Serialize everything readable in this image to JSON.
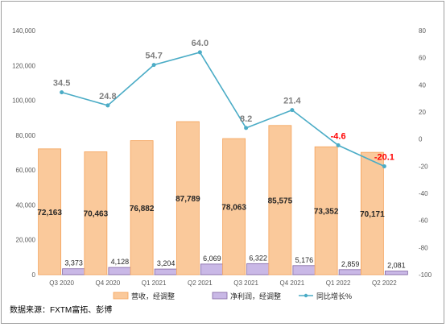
{
  "chart_data": {
    "type": "bar",
    "title": "",
    "categories": [
      "Q3 2020",
      "Q4 2020",
      "Q1 2021",
      "Q2 2021",
      "Q3 2021",
      "Q4 2021",
      "Q1 2022",
      "Q2 2022"
    ],
    "series": [
      {
        "name": "营收，经调整",
        "kind": "bar",
        "axis": "left",
        "color": "#fac99b",
        "values": [
          72163,
          70463,
          76882,
          87789,
          78063,
          85575,
          73352,
          70171
        ],
        "labels": [
          "72,163",
          "70,463",
          "76,882",
          "87,789",
          "78,063",
          "85,575",
          "73,352",
          "70,171"
        ]
      },
      {
        "name": "净利润，经调整",
        "kind": "bar",
        "axis": "left",
        "color": "#c9b8e6",
        "values": [
          3373,
          4128,
          3204,
          6069,
          6322,
          5176,
          2859,
          2081
        ],
        "labels": [
          "3,373",
          "4,128",
          "3,204",
          "6,069",
          "6,322",
          "5,176",
          "2,859",
          "2,081"
        ]
      },
      {
        "name": "同比增长%",
        "kind": "line",
        "axis": "right",
        "color": "#4bacc6",
        "values": [
          34.5,
          24.8,
          54.7,
          64.0,
          8.2,
          21.4,
          -4.6,
          -20.1
        ],
        "labels": [
          "34.5",
          "24.8",
          "54.7",
          "64.0",
          "8.2",
          "21.4",
          "-4.6",
          "-20.1"
        ]
      }
    ],
    "left_axis": {
      "ylim": [
        0,
        140000
      ],
      "ticks": [
        "0",
        "20,000",
        "40,000",
        "60,000",
        "80,000",
        "100,000",
        "120,000",
        "140,000"
      ]
    },
    "right_axis": {
      "ylim": [
        -100,
        80
      ],
      "ticks": [
        "-100",
        "-80",
        "-60",
        "-40",
        "-20",
        "0",
        "20",
        "40",
        "60",
        "80"
      ]
    },
    "negative_label_color": "#ff0000",
    "grid": false,
    "legend": "bottom"
  },
  "source_note": "数据来源：FXTM富拓、彭博"
}
